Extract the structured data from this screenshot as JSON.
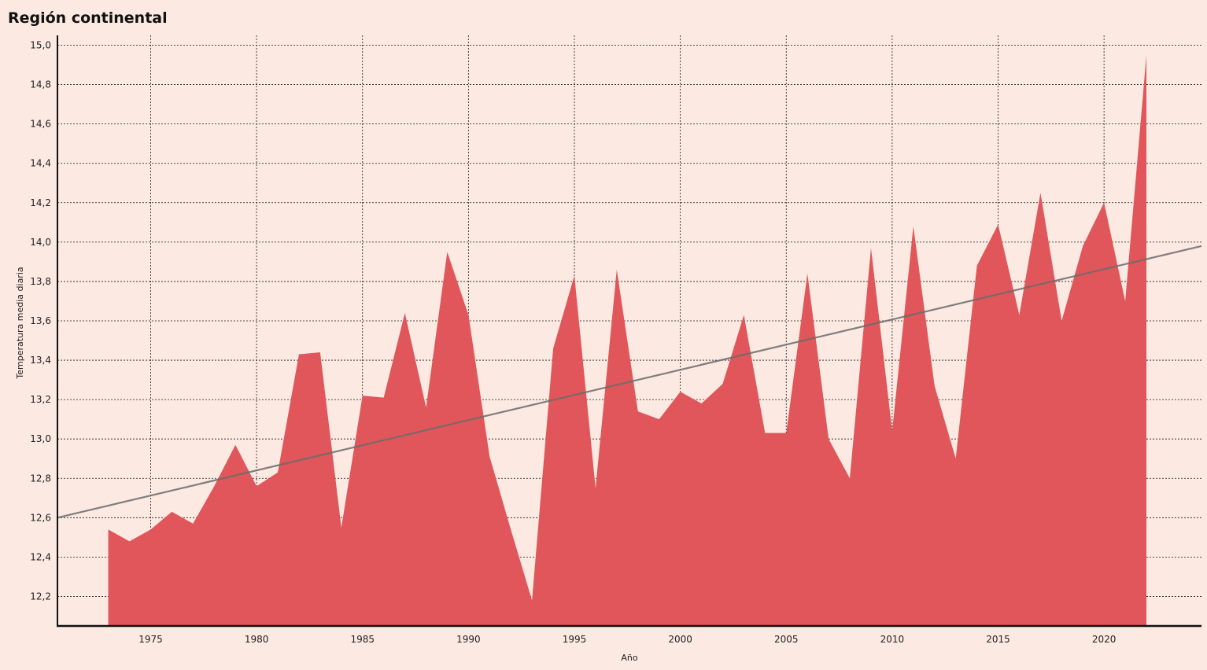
{
  "chart_data": {
    "type": "area",
    "title": "Región continental",
    "xlabel": "Año",
    "ylabel": "Temperatura media diaria",
    "xlim": [
      1970.6,
      2024.6
    ],
    "ylim": [
      12.05,
      15.05
    ],
    "x_ticks": [
      1975,
      1980,
      1985,
      1990,
      1995,
      2000,
      2005,
      2010,
      2015,
      2020
    ],
    "y_ticks": [
      12.2,
      12.4,
      12.6,
      12.8,
      13.0,
      13.2,
      13.4,
      13.6,
      13.8,
      14.0,
      14.2,
      14.4,
      14.6,
      14.8,
      15.0
    ],
    "y_tick_labels": [
      "12,2",
      "12,4",
      "12,6",
      "12,8",
      "13,0",
      "13,2",
      "13,4",
      "13,6",
      "13,8",
      "14,0",
      "14,2",
      "14,4",
      "14,6",
      "14,8",
      "15,0"
    ],
    "grid": true,
    "series": [
      {
        "x": [
          1973,
          1974,
          1975,
          1976,
          1977,
          1978,
          1979,
          1980,
          1981,
          1982,
          1983,
          1984,
          1985,
          1986,
          1987,
          1988,
          1989,
          1990,
          1991,
          1992,
          1993,
          1994,
          1995,
          1996,
          1997,
          1998,
          1999,
          2000,
          2001,
          2002,
          2003,
          2004,
          2005,
          2006,
          2007,
          2008,
          2009,
          2010,
          2011,
          2012,
          2013,
          2014,
          2015,
          2016,
          2017,
          2018,
          2019,
          2020,
          2021,
          2022
        ],
        "values": [
          12.54,
          12.48,
          12.54,
          12.63,
          12.57,
          12.76,
          12.97,
          12.76,
          12.83,
          13.43,
          13.44,
          12.55,
          13.22,
          13.21,
          13.64,
          13.16,
          13.95,
          13.63,
          12.91,
          12.54,
          12.18,
          13.46,
          13.83,
          12.75,
          13.86,
          13.14,
          13.1,
          13.24,
          13.18,
          13.28,
          13.63,
          13.03,
          13.03,
          13.84,
          13.0,
          12.8,
          13.97,
          13.04,
          14.08,
          13.27,
          12.9,
          13.88,
          14.09,
          13.63,
          14.25,
          13.6,
          13.98,
          14.2,
          13.7,
          14.95
        ]
      }
    ],
    "trendline": {
      "x": [
        1970.6,
        2024.6
      ],
      "y": [
        12.6,
        13.98
      ]
    },
    "colors": {
      "background": "#fbe9e2",
      "area": "#e0565b",
      "trend": "#6b6b6b",
      "grid": "#1a1a1a",
      "axis": "#111111"
    }
  }
}
